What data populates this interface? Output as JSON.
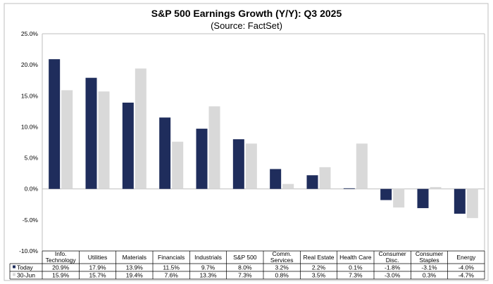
{
  "chart_data": {
    "type": "bar",
    "title": "S&P 500 Earnings Growth (Y/Y): Q3 2025",
    "subtitle": "(Source: FactSet)",
    "categories": [
      [
        "Info.",
        "Technology"
      ],
      [
        "Utilities"
      ],
      [
        "Materials"
      ],
      [
        "Financials"
      ],
      [
        "Industrials"
      ],
      [
        "S&P 500"
      ],
      [
        "Comm.",
        "Services"
      ],
      [
        "Real Estate"
      ],
      [
        "Health Care"
      ],
      [
        "Consumer",
        "Disc."
      ],
      [
        "Consumer",
        "Staples"
      ],
      [
        "Energy"
      ]
    ],
    "series": [
      {
        "name": "Today",
        "color": "#1f2d5c",
        "values": [
          20.9,
          17.9,
          13.9,
          11.5,
          9.7,
          8.0,
          3.2,
          2.2,
          0.1,
          -1.8,
          -3.1,
          -4.0
        ]
      },
      {
        "name": "30-Jun",
        "color": "#d9d9d9",
        "values": [
          15.9,
          15.7,
          19.4,
          7.6,
          13.3,
          7.3,
          0.8,
          3.5,
          7.3,
          -3.0,
          0.3,
          -4.7
        ]
      }
    ],
    "ylim": [
      -10,
      25
    ],
    "yticks": [
      "-10.0%",
      "-5.0%",
      "0.0%",
      "5.0%",
      "10.0%",
      "15.0%",
      "20.0%",
      "25.0%"
    ],
    "grid": false,
    "legend": "data-table"
  }
}
